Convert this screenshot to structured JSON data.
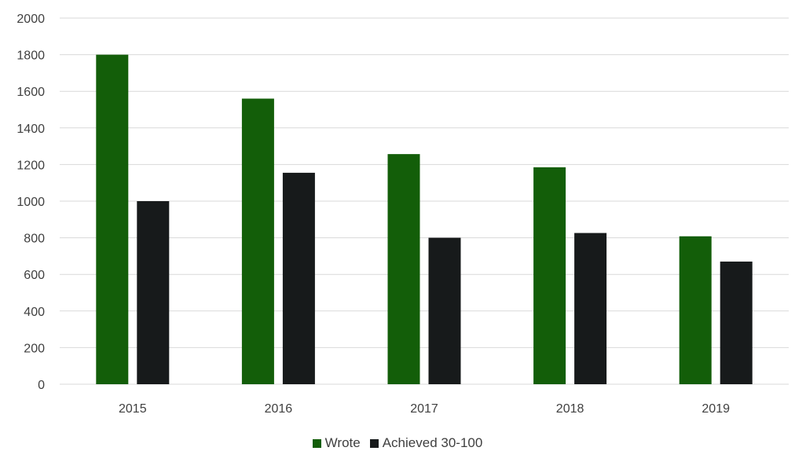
{
  "chart_data": {
    "type": "bar",
    "title": "",
    "xlabel": "",
    "ylabel": "",
    "categories": [
      "2015",
      "2016",
      "2017",
      "2018",
      "2019"
    ],
    "series": [
      {
        "name": "Wrote",
        "color": "#135e09",
        "values": [
          1800,
          1560,
          1257,
          1185,
          808
        ]
      },
      {
        "name": "Achieved 30-100",
        "color": "#171a1b",
        "values": [
          1000,
          1155,
          800,
          826,
          670
        ]
      }
    ],
    "ylim": [
      0,
      2000
    ],
    "yticks": [
      "0",
      "200",
      "400",
      "600",
      "800",
      "1000",
      "1200",
      "1400",
      "1600",
      "1800",
      "2000"
    ],
    "grid": true,
    "legend_position": "bottom"
  }
}
